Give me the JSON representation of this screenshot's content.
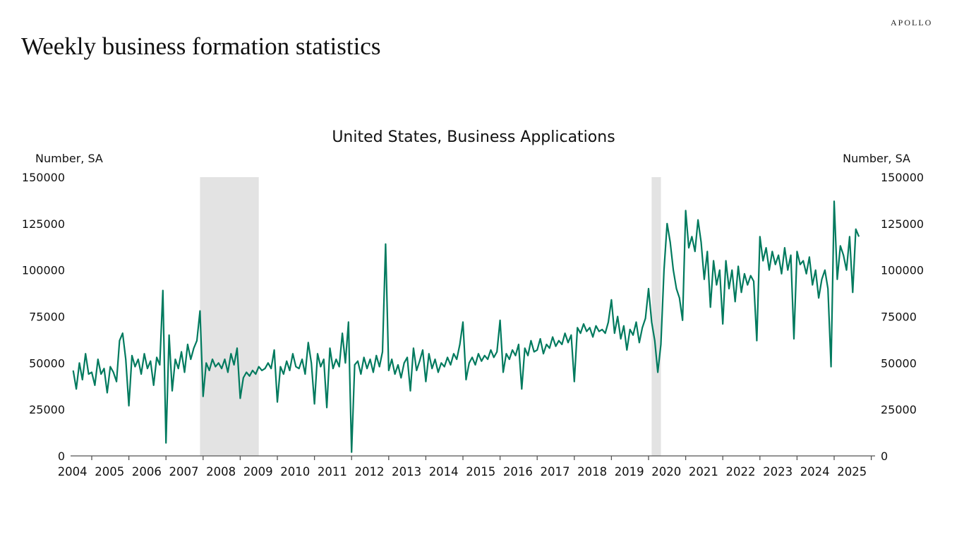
{
  "logo": "APOLLO",
  "title": "Weekly business formation statistics",
  "chart_data": {
    "type": "line",
    "title": "United States, Business Applications",
    "ylabel_left": "Number, SA",
    "ylabel_right": "Number, SA",
    "ylim": [
      0,
      150000
    ],
    "yticks": [
      0,
      25000,
      50000,
      75000,
      100000,
      125000,
      150000
    ],
    "xlim": [
      "2004-07",
      "2025-12"
    ],
    "xtick_labels": [
      "2004",
      "2005",
      "2006",
      "2007",
      "2008",
      "2009",
      "2010",
      "2011",
      "2012",
      "2013",
      "2014",
      "2015",
      "2016",
      "2017",
      "2018",
      "2019",
      "2020",
      "2021",
      "2022",
      "2023",
      "2024",
      "2025"
    ],
    "grid": false,
    "line_color": "#007A5E",
    "recession_shading_color": "#E3E3E3",
    "recessions": [
      [
        "2007-12",
        "2009-06"
      ],
      [
        "2020-02",
        "2020-04"
      ]
    ],
    "series": [
      {
        "frequency": "approx. monthly (weekly source)",
        "values_by_year": {
          "2004": [
            46000,
            36000,
            50000,
            41000,
            55000,
            44000
          ],
          "2005": [
            45000,
            38000,
            52000,
            44000,
            47000,
            34000,
            48000,
            45000,
            40000,
            62000,
            66000,
            52000
          ],
          "2006": [
            27000,
            54000,
            48000,
            52000,
            44000,
            55000,
            47000,
            51000,
            38000,
            53000,
            49000,
            89000
          ],
          "2007": [
            7000,
            65000,
            35000,
            52000,
            47000,
            56000,
            45000,
            60000,
            52000,
            58000,
            62000,
            78000
          ],
          "2008": [
            32000,
            50000,
            46000,
            52000,
            48000,
            50000,
            47000,
            52000,
            45000,
            55000,
            49000,
            58000
          ],
          "2009": [
            31000,
            42000,
            45000,
            43000,
            46000,
            44000,
            48000,
            46000,
            47000,
            50000,
            47000,
            57000
          ],
          "2010": [
            29000,
            48000,
            44000,
            51000,
            46000,
            55000,
            48000,
            47000,
            52000,
            44000,
            61000,
            50000
          ],
          "2011": [
            28000,
            55000,
            48000,
            52000,
            26000,
            58000,
            47000,
            52000,
            48000,
            66000,
            50000,
            72000
          ],
          "2012": [
            2000,
            49000,
            51000,
            44000,
            53000,
            47000,
            52000,
            45000,
            54000,
            48000,
            56000,
            114000
          ],
          "2013": [
            46000,
            52000,
            44000,
            49000,
            42000,
            50000,
            53000,
            35000,
            58000,
            46000,
            51000,
            57000
          ],
          "2014": [
            40000,
            55000,
            47000,
            52000,
            45000,
            50000,
            48000,
            53000,
            49000,
            55000,
            52000,
            60000
          ],
          "2015": [
            72000,
            41000,
            50000,
            53000,
            49000,
            55000,
            51000,
            54000,
            52000,
            57000,
            53000,
            56000
          ],
          "2016": [
            73000,
            45000,
            55000,
            52000,
            57000,
            54000,
            60000,
            36000,
            58000,
            54000,
            62000,
            56000
          ],
          "2017": [
            57000,
            63000,
            55000,
            60000,
            58000,
            64000,
            59000,
            62000,
            60000,
            66000,
            61000,
            65000
          ],
          "2018": [
            40000,
            69000,
            66000,
            71000,
            67000,
            69000,
            64000,
            70000,
            67000,
            68000,
            66000,
            72000
          ],
          "2019": [
            84000,
            66000,
            75000,
            63000,
            70000,
            57000,
            68000,
            65000,
            72000,
            61000,
            69000,
            74000
          ],
          "2020": [
            90000,
            72000,
            62000,
            45000,
            60000,
            100000,
            125000,
            115000,
            100000,
            90000,
            85000,
            73000
          ],
          "2021": [
            132000,
            112000,
            118000,
            110000,
            127000,
            115000,
            95000,
            110000,
            80000,
            105000,
            92000,
            100000
          ],
          "2022": [
            71000,
            105000,
            90000,
            100000,
            83000,
            102000,
            88000,
            98000,
            92000,
            97000,
            94000,
            62000
          ],
          "2023": [
            118000,
            105000,
            112000,
            100000,
            110000,
            103000,
            108000,
            98000,
            112000,
            100000,
            108000,
            63000
          ],
          "2024": [
            110000,
            103000,
            105000,
            98000,
            107000,
            92000,
            100000,
            85000,
            95000,
            100000,
            90000,
            48000
          ],
          "2025": [
            137000,
            95000,
            113000,
            108000,
            100000,
            118000,
            88000,
            122000,
            118000
          ]
        }
      }
    ]
  }
}
